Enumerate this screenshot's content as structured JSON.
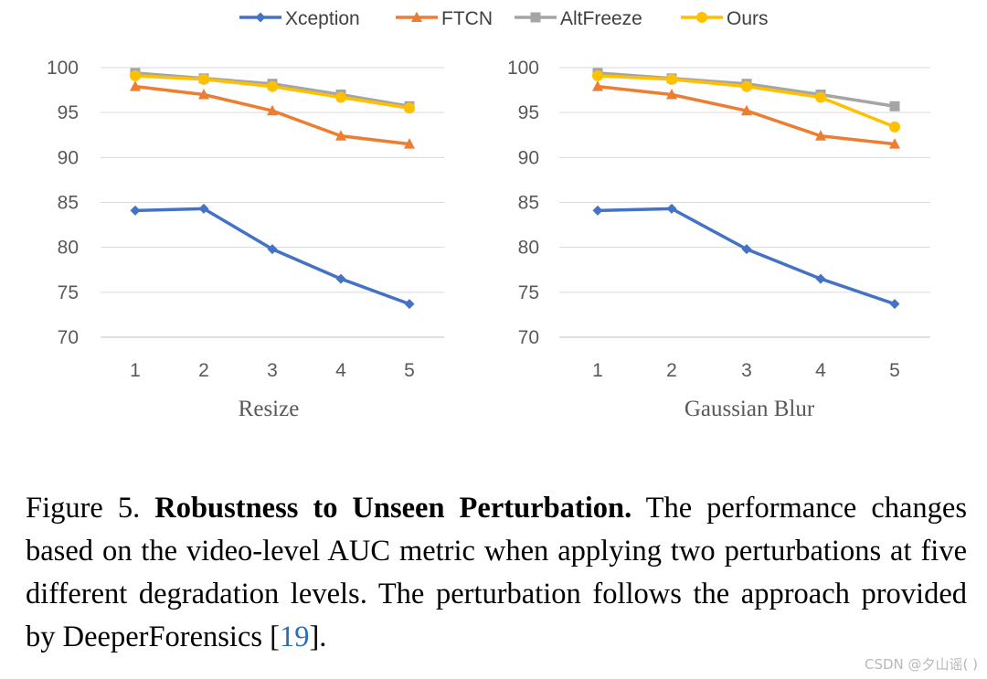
{
  "chart_data": [
    {
      "type": "line",
      "xlabel": "Resize",
      "categories": [
        "1",
        "2",
        "3",
        "4",
        "5"
      ],
      "ylim": [
        70,
        100
      ],
      "yticks": [
        "100",
        "95",
        "90",
        "85",
        "80",
        "75",
        "70"
      ],
      "grid": true,
      "series": [
        {
          "name": "Xception",
          "values": [
            84.1,
            84.3,
            79.8,
            76.5,
            73.7
          ]
        },
        {
          "name": "FTCN",
          "values": [
            97.9,
            97.0,
            95.2,
            92.4,
            91.5
          ]
        },
        {
          "name": "AltFreeze",
          "values": [
            99.4,
            98.8,
            98.2,
            97.0,
            95.7
          ]
        },
        {
          "name": "Ours",
          "values": [
            99.1,
            98.7,
            97.9,
            96.7,
            95.5
          ]
        }
      ]
    },
    {
      "type": "line",
      "xlabel": "Gaussian Blur",
      "categories": [
        "1",
        "2",
        "3",
        "4",
        "5"
      ],
      "ylim": [
        70,
        100
      ],
      "yticks": [
        "100",
        "95",
        "90",
        "85",
        "80",
        "75",
        "70"
      ],
      "grid": true,
      "series": [
        {
          "name": "Xception",
          "values": [
            84.1,
            84.3,
            79.8,
            76.5,
            73.7
          ]
        },
        {
          "name": "FTCN",
          "values": [
            97.9,
            97.0,
            95.2,
            92.4,
            91.5
          ]
        },
        {
          "name": "AltFreeze",
          "values": [
            99.4,
            98.8,
            98.2,
            97.0,
            95.7
          ]
        },
        {
          "name": "Ours",
          "values": [
            99.1,
            98.7,
            97.9,
            96.7,
            93.4
          ]
        }
      ]
    }
  ],
  "legend": {
    "placement": "top",
    "items": [
      {
        "name": "Xception",
        "color": "#4472c4",
        "marker": "diamond"
      },
      {
        "name": "FTCN",
        "color": "#ed7d31",
        "marker": "triangle"
      },
      {
        "name": "AltFreeze",
        "color": "#a5a5a5",
        "marker": "square"
      },
      {
        "name": "Ours",
        "color": "#ffc000",
        "marker": "circle"
      }
    ]
  },
  "caption": {
    "prefix": "Figure 5. ",
    "title": "Robustness to Unseen Perturbation.",
    "body": " The performance changes based on the video-level AUC metric when applying two perturbations at five different degradation levels. The perturbation follows the approach provided by DeeperForensics [",
    "ref": "19",
    "suffix": "]."
  },
  "watermark": "CSDN @夕山谣(        )"
}
